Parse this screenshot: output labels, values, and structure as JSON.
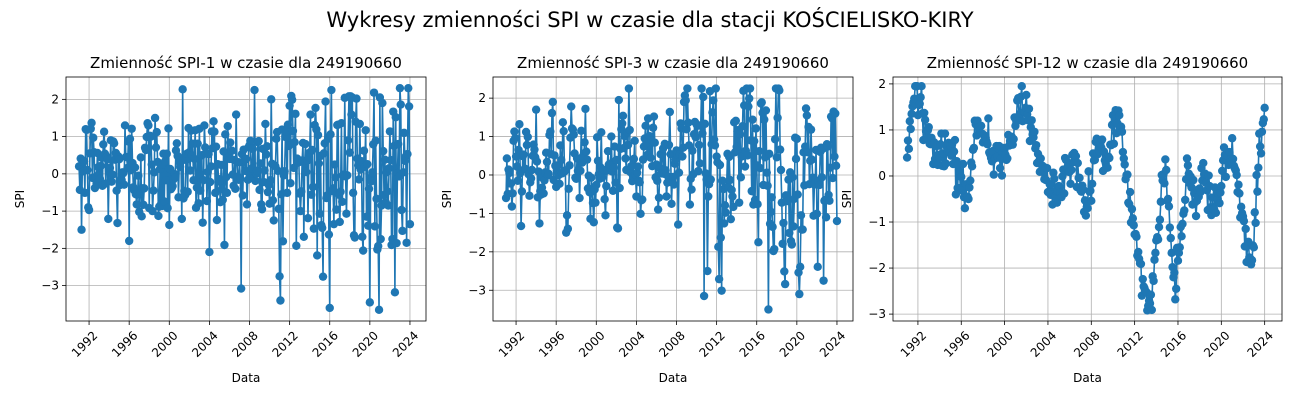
{
  "figure": {
    "suptitle": "Wykresy zmienności SPI w czasie dla stacji KOŚCIELISKO-KIRY"
  },
  "colors": {
    "series": "#1f77b4",
    "grid": "#b0b0b0"
  },
  "chart_data": [
    {
      "type": "line",
      "title": "Zmienność SPI-1 w czasie dla 249190660",
      "xlabel": "Data",
      "ylabel": "SPI",
      "xlim": [
        1989.7,
        2025.6
      ],
      "ylim": [
        -3.95,
        2.6
      ],
      "xticks": [
        1992,
        1996,
        2000,
        2004,
        2008,
        2012,
        2016,
        2020,
        2024
      ],
      "yticks": [
        -3,
        -2,
        -1,
        0,
        1,
        2
      ],
      "grid": true,
      "series": [
        {
          "x_start": 1991.0,
          "x_end": 2024.0,
          "x_step_months": 1,
          "values": []
        }
      ]
    },
    {
      "type": "line",
      "title": "Zmienność SPI-3 w czasie dla 249190660",
      "xlabel": "Data",
      "ylabel": "SPI",
      "xlim": [
        1989.7,
        2025.6
      ],
      "ylim": [
        -3.8,
        2.55
      ],
      "xticks": [
        1992,
        1996,
        2000,
        2004,
        2008,
        2012,
        2016,
        2020,
        2024
      ],
      "yticks": [
        -3,
        -2,
        -1,
        0,
        1,
        2
      ],
      "grid": true,
      "series": [
        {
          "x_start": 1991.0,
          "x_end": 2024.0,
          "x_step_months": 1,
          "values": []
        }
      ]
    },
    {
      "type": "line",
      "title": "Zmienność SPI-12 w czasie dla 249190660",
      "xlabel": "Data",
      "ylabel": "SPI",
      "xlim": [
        1989.7,
        2025.6
      ],
      "ylim": [
        -3.15,
        2.15
      ],
      "xticks": [
        1992,
        1996,
        2000,
        2004,
        2008,
        2012,
        2016,
        2020,
        2024
      ],
      "yticks": [
        -3,
        -2,
        -1,
        0,
        1,
        2
      ],
      "grid": true,
      "series": [
        {
          "x_start": 1991.0,
          "x_end": 2024.0,
          "x_step_months": 1,
          "values": []
        }
      ]
    }
  ]
}
